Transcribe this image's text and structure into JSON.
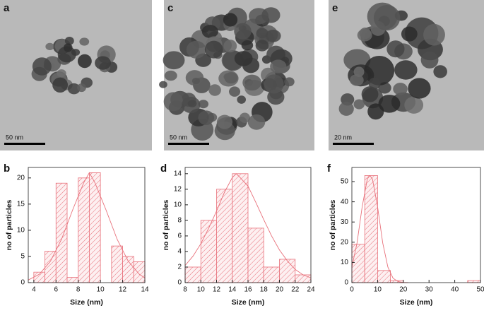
{
  "images": [
    {
      "label": "a",
      "scale_bar": "50 nm"
    },
    {
      "label": "c",
      "scale_bar": "50 nm"
    },
    {
      "label": "e",
      "scale_bar": "20 nm"
    }
  ],
  "chart_data": [
    {
      "type": "histogram",
      "panel": "b",
      "xlabel": "Size (nm)",
      "ylabel": "no of particles",
      "color": "#e8707a",
      "bins": [
        4,
        5,
        6,
        7,
        8,
        9,
        10,
        11,
        12,
        13,
        14
      ],
      "counts": [
        2,
        6,
        19,
        1,
        20,
        21,
        0,
        7,
        5,
        4
      ],
      "xlim": [
        3.5,
        14
      ],
      "xticks": [
        4,
        6,
        8,
        10,
        12,
        14
      ],
      "ylim": [
        0,
        22
      ],
      "yticks": [
        0,
        5,
        10,
        15,
        20
      ],
      "fit": {
        "x": [
          3.5,
          4.5,
          5.5,
          6.5,
          7.5,
          8.5,
          9,
          9.5,
          10.5,
          11.5,
          12.5,
          13.5,
          14
        ],
        "values": [
          0.5,
          1.6,
          4.1,
          8.3,
          13.9,
          19.1,
          21,
          19.1,
          13.9,
          8.3,
          4.1,
          1.6,
          0.9
        ]
      }
    },
    {
      "type": "histogram",
      "panel": "d",
      "xlabel": "Size (nm)",
      "ylabel": "no of particles",
      "color": "#e8707a",
      "bins": [
        8,
        10,
        12,
        14,
        16,
        18,
        20,
        22,
        24
      ],
      "counts": [
        2,
        8,
        12,
        14,
        7,
        2,
        3,
        1
      ],
      "xlim": [
        8,
        24
      ],
      "xticks": [
        8,
        10,
        12,
        14,
        16,
        18,
        20,
        22,
        24
      ],
      "ylim": [
        0,
        14.8
      ],
      "yticks": [
        0,
        2,
        4,
        6,
        8,
        10,
        12,
        14
      ],
      "fit": {
        "x": [
          8,
          9,
          10,
          11,
          12,
          13,
          14,
          14.5,
          15,
          16,
          17,
          18,
          19,
          20,
          21,
          22,
          23,
          24
        ],
        "values": [
          2.2,
          3.4,
          5.0,
          7.0,
          9.2,
          11.6,
          13.5,
          14,
          13.5,
          12.4,
          10.3,
          8.1,
          6.0,
          4.2,
          2.8,
          1.7,
          1.0,
          0.6
        ]
      }
    },
    {
      "type": "histogram",
      "panel": "f",
      "xlabel": "Size (nm)",
      "ylabel": "no of particles",
      "color": "#e8707a",
      "bins": [
        0,
        5,
        10,
        15,
        20,
        25,
        30,
        35,
        40,
        45,
        50
      ],
      "counts": [
        19,
        53,
        6,
        1,
        0,
        0,
        0,
        0,
        0,
        1
      ],
      "xlim": [
        0,
        50
      ],
      "xticks": [
        0,
        10,
        20,
        30,
        40,
        50
      ],
      "ylim": [
        0,
        57
      ],
      "yticks": [
        0,
        10,
        20,
        30,
        40,
        50
      ],
      "fit": {
        "x": [
          0,
          2,
          4,
          6,
          7,
          8,
          10,
          12,
          14,
          16,
          18,
          20,
          22
        ],
        "values": [
          7.7,
          19.6,
          37.5,
          51.3,
          53,
          51.3,
          37.5,
          19.6,
          7.7,
          2.2,
          0.5,
          0.1,
          0
        ]
      }
    }
  ]
}
